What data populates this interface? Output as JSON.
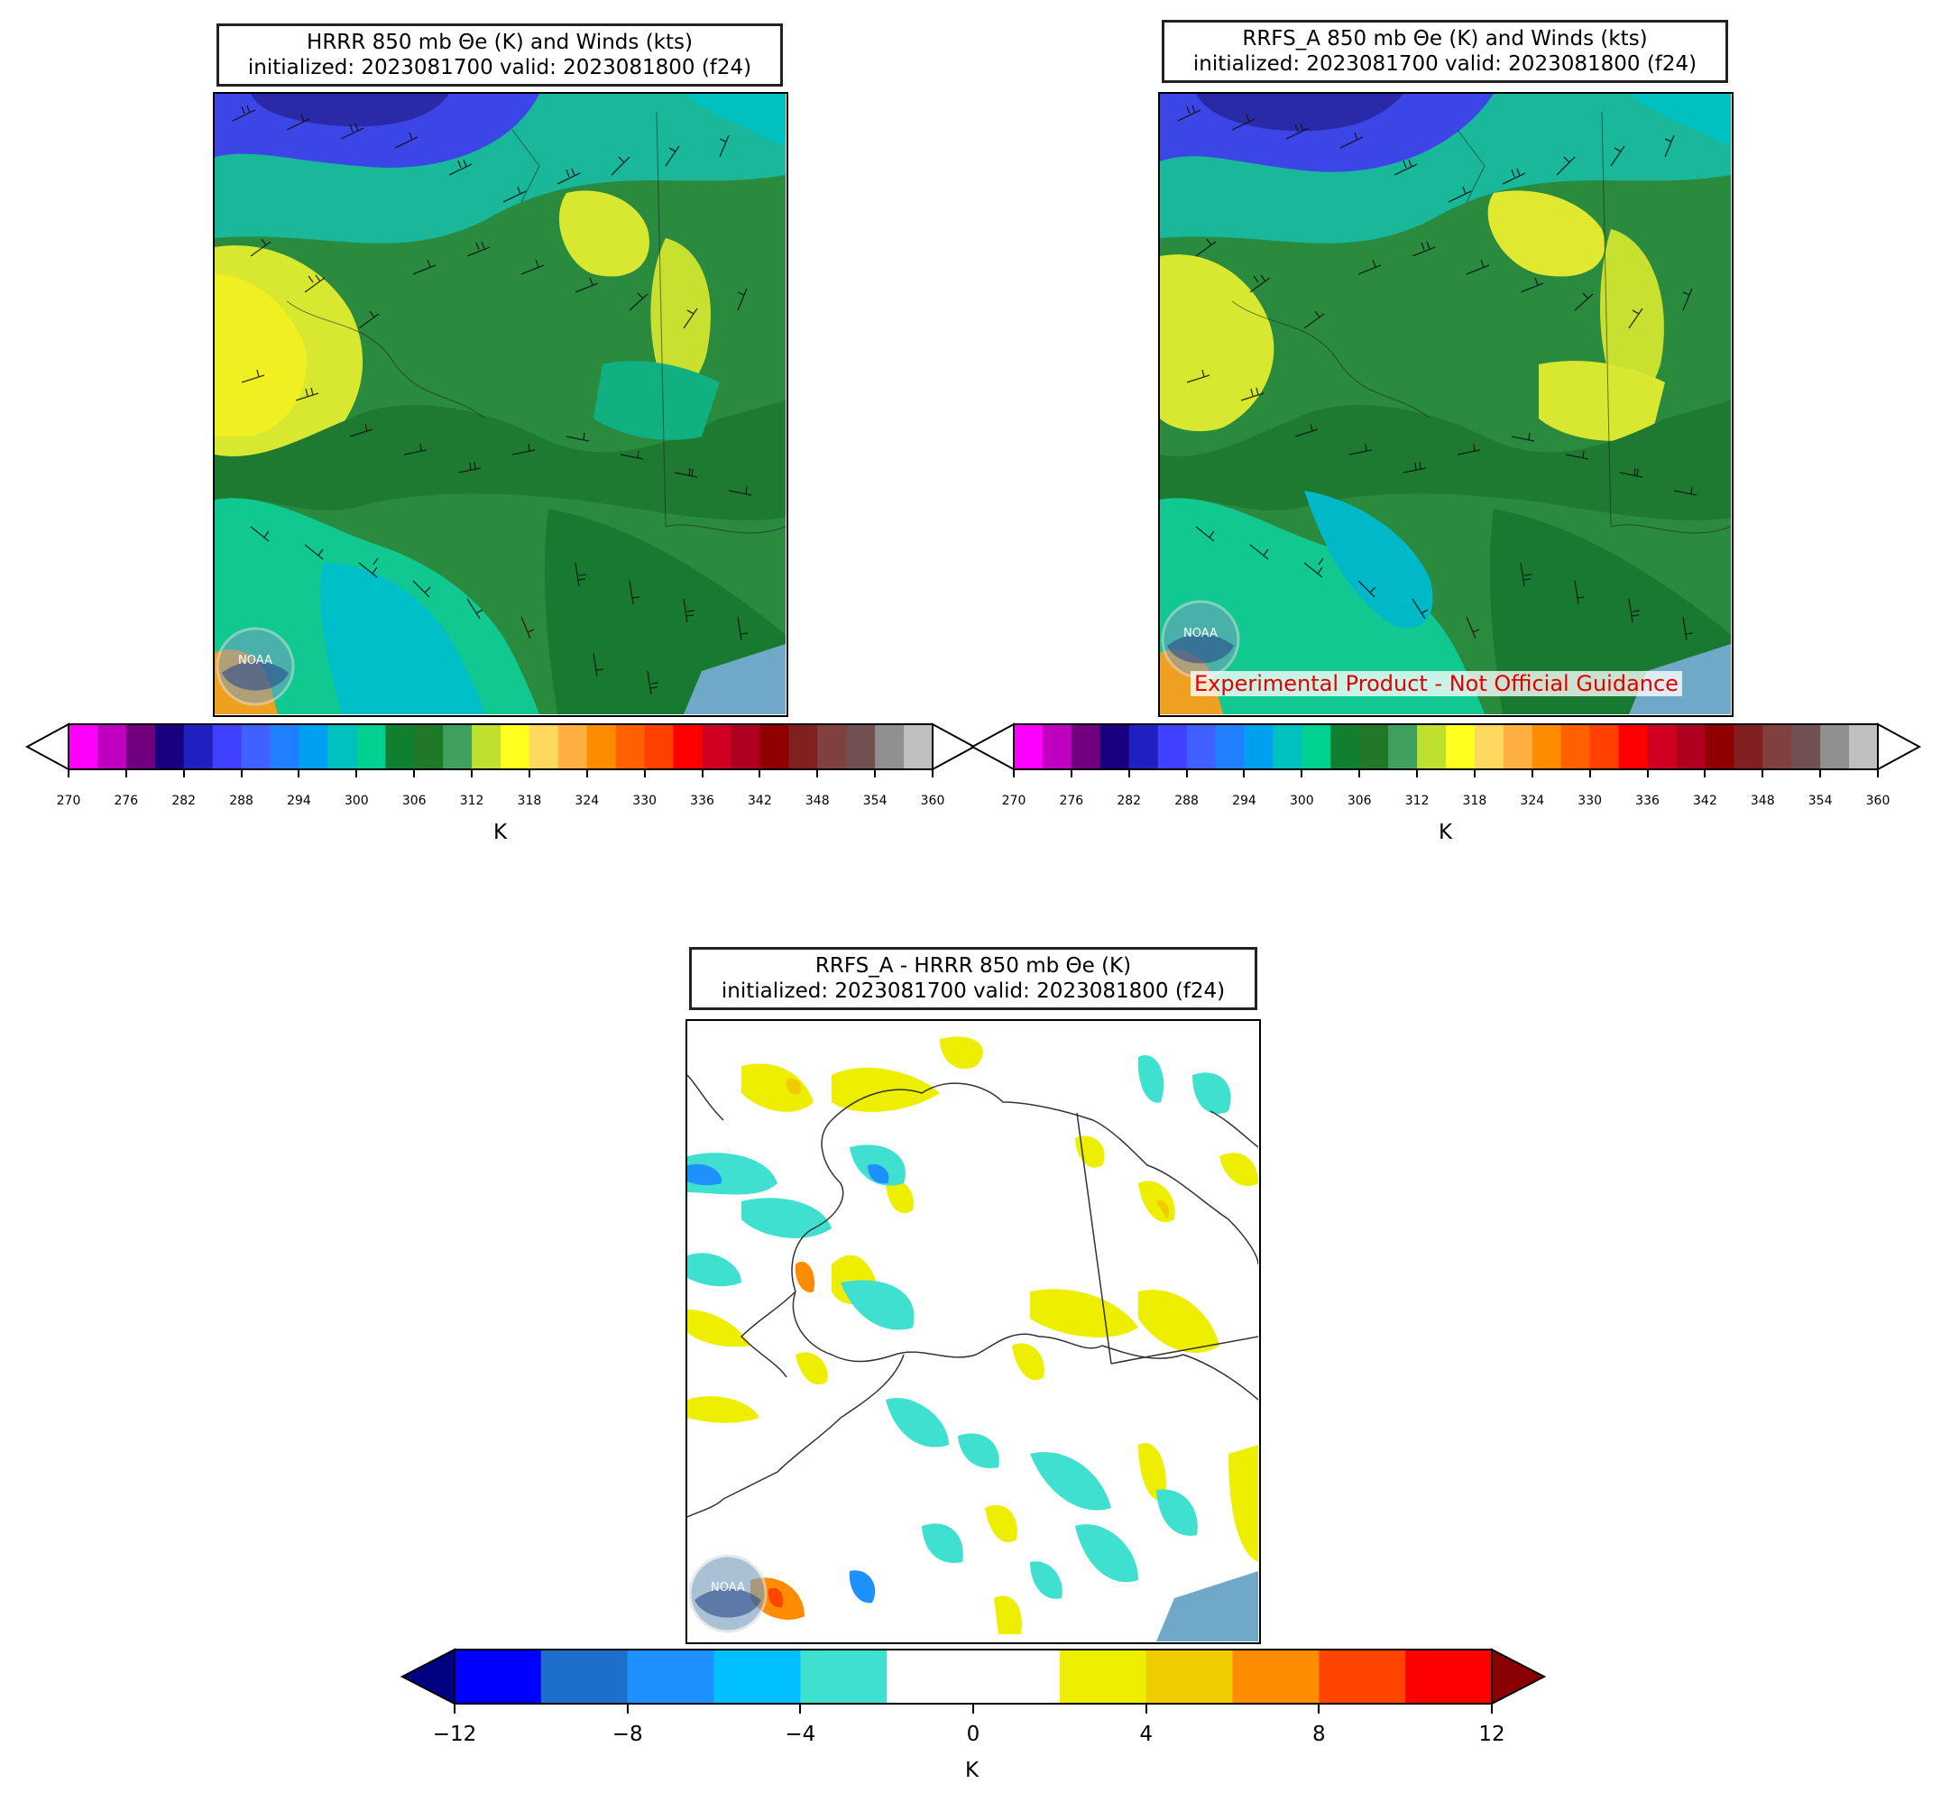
{
  "panels": [
    {
      "id": "hrrr",
      "title_line1": "HRRR 850 mb Θe (K) and Winds (kts)",
      "title_line2": "initialized: 2023081700 valid: 2023081800 (f24)",
      "logo_text": "NOAA"
    },
    {
      "id": "rrfs",
      "title_line1": "RRFS_A 850 mb Θe (K) and Winds (kts)",
      "title_line2": "initialized: 2023081700 valid: 2023081800 (f24)",
      "logo_text": "NOAA",
      "warning": "Experimental Product - Not Official Guidance"
    },
    {
      "id": "diff",
      "title_line1": "RRFS_A - HRRR 850 mb Θe (K)",
      "title_line2": "initialized: 2023081700 valid: 2023081800 (f24)",
      "logo_text": "NOAA"
    }
  ],
  "theta_colorbar": {
    "unit_label": "K",
    "ticks": [
      "270",
      "276",
      "282",
      "288",
      "294",
      "300",
      "306",
      "312",
      "318",
      "324",
      "330",
      "336",
      "342",
      "348",
      "354",
      "360"
    ],
    "colors": [
      "#ff00ff",
      "#c000c0",
      "#700080",
      "#180080",
      "#2020c0",
      "#4040ff",
      "#4060ff",
      "#2080ff",
      "#00a0f0",
      "#00c0c0",
      "#00d090",
      "#108030",
      "#207828",
      "#40a060",
      "#c0e030",
      "#ffff20",
      "#ffd860",
      "#ffb040",
      "#ff8c00",
      "#ff6000",
      "#ff4000",
      "#ff0000",
      "#d00020",
      "#b00020",
      "#900000",
      "#802020",
      "#804040",
      "#705050",
      "#909090",
      "#c0c0c0"
    ]
  },
  "diff_colorbar": {
    "unit_label": "K",
    "ticks": [
      "−12",
      "−8",
      "−4",
      "0",
      "4",
      "8",
      "12"
    ],
    "colors": [
      "#0000ff",
      "#1e6ecc",
      "#1e90ff",
      "#00bfff",
      "#40e0d0",
      "#ffffff",
      "#ffffff",
      "#eeee00",
      "#eecc00",
      "#ff8c00",
      "#ff4500",
      "#ff0000"
    ],
    "under_color": "#000080",
    "over_color": "#8b0000"
  }
}
